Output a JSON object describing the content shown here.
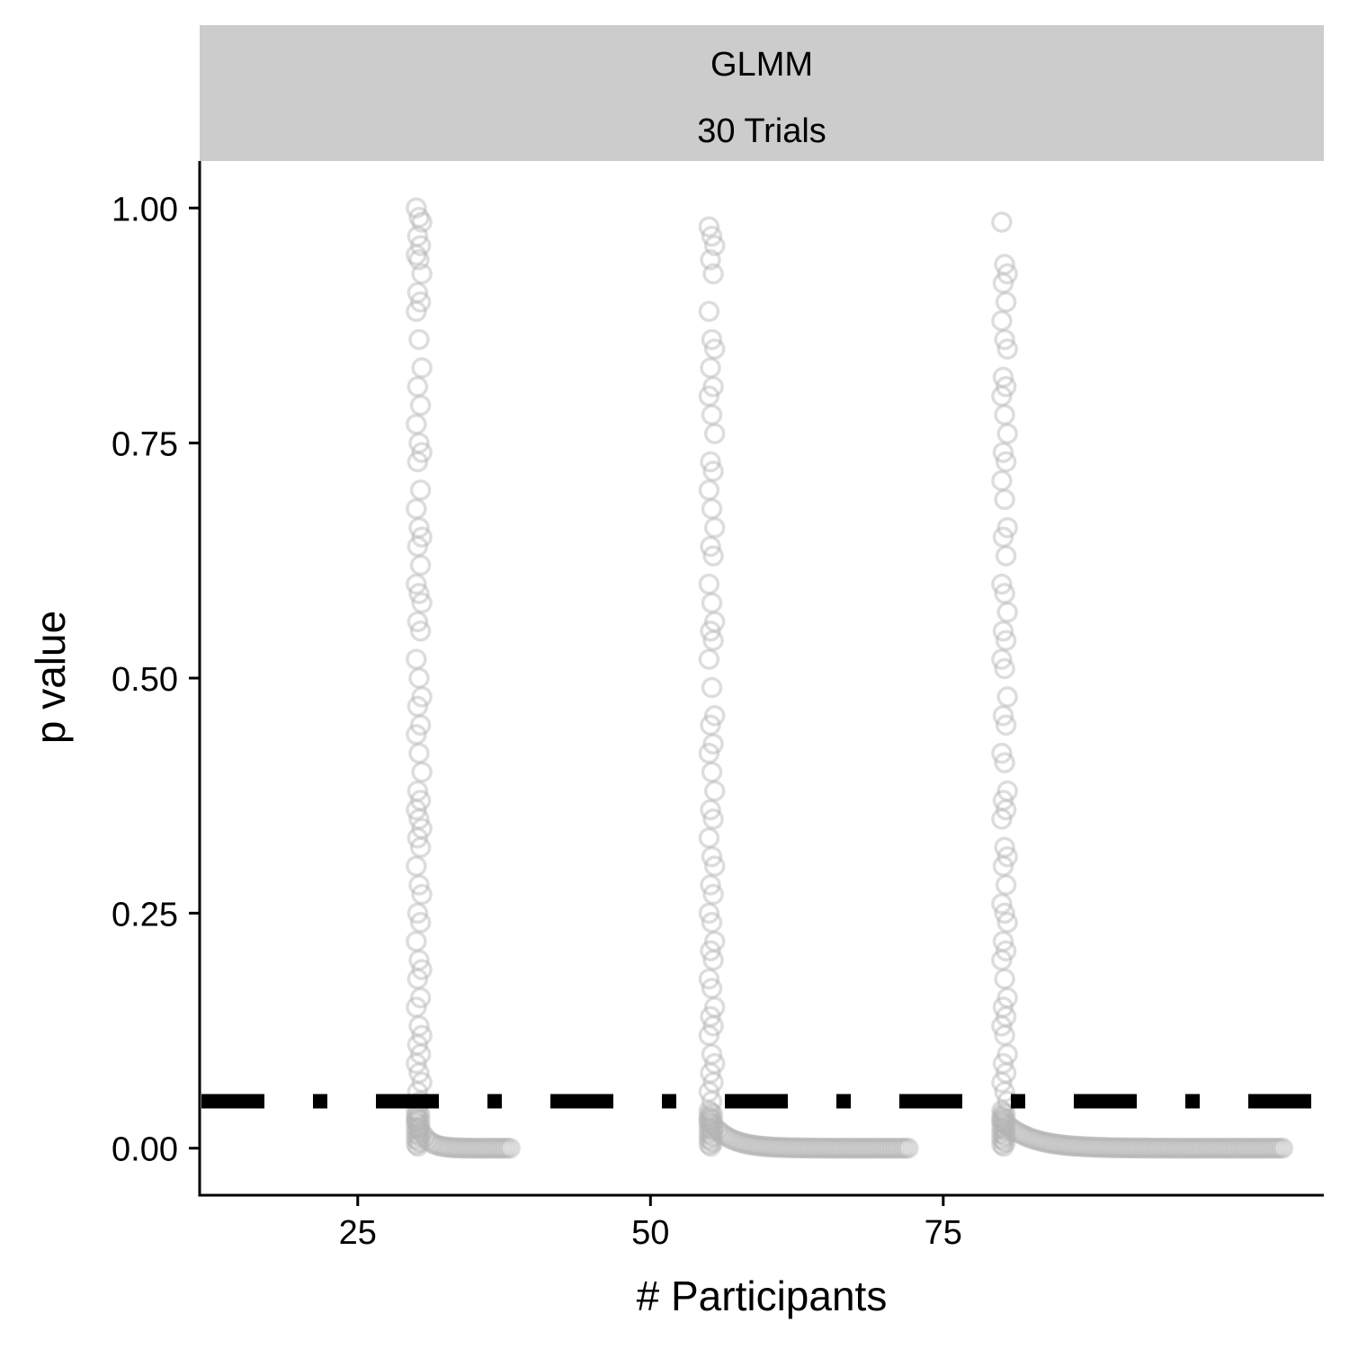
{
  "chart_data": {
    "type": "scatter",
    "facet": {
      "lines": [
        "GLMM",
        "30 Trials"
      ]
    },
    "xlabel": "# Participants",
    "ylabel": "p value",
    "xlim": [
      11.5,
      107.5
    ],
    "ylim": [
      -0.05,
      1.05
    ],
    "x_ticks": [
      25,
      50,
      75
    ],
    "x_tick_labels": [
      "25",
      "50",
      "75"
    ],
    "y_ticks": [
      0,
      0.25,
      0.5,
      0.75,
      1.0
    ],
    "y_tick_labels": [
      "0.00",
      "0.25",
      "0.50",
      "0.75",
      "1.00"
    ],
    "reference_line": {
      "y": 0.05,
      "style": "dotdash",
      "color": "#000000"
    },
    "point_style": {
      "shape": "open-circle",
      "color": "#b3b3b3",
      "alpha": 0.45
    },
    "grid": false,
    "legend": "none",
    "series": [
      {
        "x_start": 30,
        "x_stop": 38,
        "p_sample": [
          1.0,
          0.99,
          0.985,
          0.97,
          0.96,
          0.95,
          0.945,
          0.93,
          0.91,
          0.9,
          0.89,
          0.86,
          0.83,
          0.81,
          0.79,
          0.77,
          0.75,
          0.74,
          0.73,
          0.7,
          0.68,
          0.66,
          0.65,
          0.64,
          0.62,
          0.6,
          0.59,
          0.58,
          0.56,
          0.55,
          0.52,
          0.5,
          0.48,
          0.47,
          0.45,
          0.44,
          0.42,
          0.4,
          0.38,
          0.37,
          0.36,
          0.35,
          0.34,
          0.33,
          0.32,
          0.3,
          0.28,
          0.27,
          0.25,
          0.24,
          0.22,
          0.2,
          0.19,
          0.18,
          0.16,
          0.15,
          0.13,
          0.12,
          0.11,
          0.1,
          0.09,
          0.08,
          0.07,
          0.06,
          0.05
        ]
      },
      {
        "x_start": 55,
        "x_stop": 72,
        "p_sample": [
          0.98,
          0.97,
          0.96,
          0.945,
          0.93,
          0.89,
          0.86,
          0.85,
          0.83,
          0.81,
          0.8,
          0.78,
          0.76,
          0.73,
          0.72,
          0.7,
          0.68,
          0.66,
          0.64,
          0.63,
          0.6,
          0.58,
          0.56,
          0.55,
          0.54,
          0.52,
          0.49,
          0.46,
          0.45,
          0.43,
          0.42,
          0.4,
          0.38,
          0.36,
          0.35,
          0.33,
          0.31,
          0.3,
          0.28,
          0.27,
          0.25,
          0.24,
          0.22,
          0.21,
          0.2,
          0.18,
          0.17,
          0.15,
          0.14,
          0.13,
          0.12,
          0.1,
          0.09,
          0.08,
          0.07,
          0.06,
          0.05
        ]
      },
      {
        "x_start": 80,
        "x_stop": 104,
        "p_sample": [
          0.985,
          0.94,
          0.93,
          0.92,
          0.9,
          0.88,
          0.86,
          0.85,
          0.82,
          0.81,
          0.8,
          0.78,
          0.76,
          0.74,
          0.73,
          0.71,
          0.69,
          0.66,
          0.65,
          0.63,
          0.6,
          0.59,
          0.57,
          0.55,
          0.54,
          0.52,
          0.51,
          0.48,
          0.46,
          0.45,
          0.42,
          0.41,
          0.38,
          0.37,
          0.36,
          0.35,
          0.32,
          0.31,
          0.3,
          0.28,
          0.26,
          0.25,
          0.24,
          0.22,
          0.21,
          0.2,
          0.18,
          0.16,
          0.15,
          0.14,
          0.13,
          0.12,
          0.1,
          0.09,
          0.08,
          0.07,
          0.06,
          0.05
        ]
      }
    ]
  }
}
